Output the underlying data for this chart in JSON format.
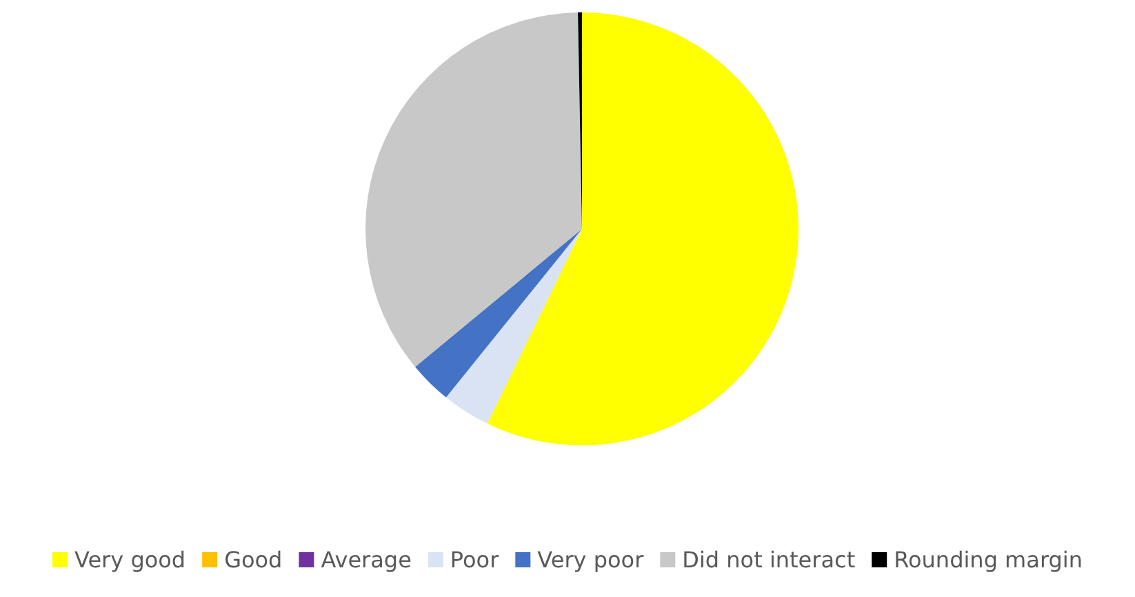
{
  "chart_data": {
    "type": "pie",
    "categories": [
      "Very good",
      "Good",
      "Average",
      "Poor",
      "Very poor",
      "Did not interact",
      "Rounding margin"
    ],
    "values": [
      57.2,
      0,
      0,
      3.6,
      3.2,
      35.7,
      0.3
    ],
    "colors": [
      "#ffff00",
      "#ffc000",
      "#7030a0",
      "#dae3f3",
      "#4472c4",
      "#c8c8c8",
      "#000000"
    ],
    "legend": "bottom"
  }
}
